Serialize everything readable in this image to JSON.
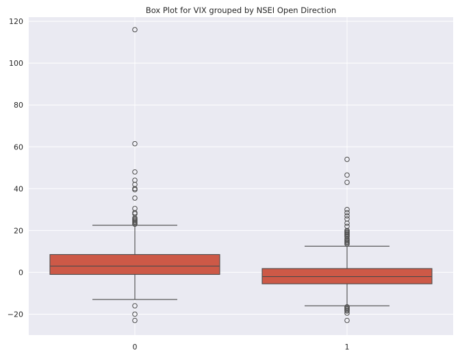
{
  "chart_data": {
    "type": "box",
    "title": "Box Plot for VIX grouped by NSEI Open Direction",
    "xlabel": "",
    "ylabel": "",
    "categories": [
      "0",
      "1"
    ],
    "ylim": [
      -30,
      122
    ],
    "yticks": [
      -20,
      0,
      20,
      40,
      60,
      80,
      100,
      120
    ],
    "grid": true,
    "colors": {
      "box_fill": "#cd5947",
      "line": "#4a4a4a",
      "background": "#eaeaf2",
      "grid": "#ffffff"
    },
    "boxes": [
      {
        "category": "0",
        "whisker_low": -13,
        "q1": -1,
        "median": 3,
        "q3": 8.5,
        "whisker_high": 22.5,
        "outliers": [
          -16,
          -20,
          -23,
          23,
          23.5,
          24,
          24.5,
          25,
          25.5,
          26,
          28,
          28.5,
          30.5,
          35.5,
          39.5,
          40,
          42,
          44,
          48,
          61.5,
          116
        ]
      },
      {
        "category": "1",
        "whisker_low": -16,
        "q1": -5.5,
        "median": -2,
        "q3": 1.8,
        "whisker_high": 12.5,
        "outliers": [
          -16.5,
          -17,
          -17.5,
          -18,
          -18.5,
          -19.5,
          -23,
          13.5,
          14,
          14.5,
          15,
          15.5,
          16,
          17,
          17.5,
          18,
          18.5,
          19,
          19.5,
          20,
          22,
          23.5,
          25.5,
          27,
          28.5,
          30,
          43,
          46.5,
          54
        ]
      }
    ]
  }
}
